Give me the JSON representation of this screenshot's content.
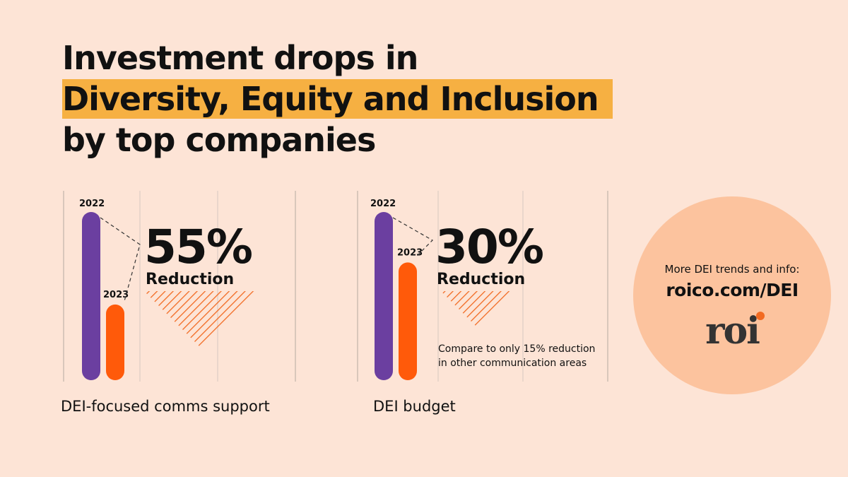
{
  "title": {
    "line1": "Investment drops in",
    "line2": "Diversity, Equity and Inclusion",
    "line3": "by top companies"
  },
  "colors": {
    "background": "#fde4d6",
    "highlight": "#f6b042",
    "bar_2022": "#6b3fa0",
    "bar_2023": "#ff5a0a",
    "hatch": "#f26a21",
    "circle": "#fcc39e"
  },
  "chart_data": [
    {
      "type": "bar",
      "categories": [
        "2022",
        "2023"
      ],
      "values": [
        100,
        45
      ],
      "reduction_pct": "55%",
      "reduction_label": "Reduction",
      "label": "DEI-focused comms support",
      "note": ""
    },
    {
      "type": "bar",
      "categories": [
        "2022",
        "2023"
      ],
      "values": [
        100,
        70
      ],
      "reduction_pct": "30%",
      "reduction_label": "Reduction",
      "label": "DEI budget",
      "note_lines": [
        "Compare to only 15% reduction",
        "in other communication areas"
      ]
    }
  ],
  "promo": {
    "text": "More DEI trends and info:",
    "url": "roico.com/DEI",
    "logo": "roi"
  }
}
